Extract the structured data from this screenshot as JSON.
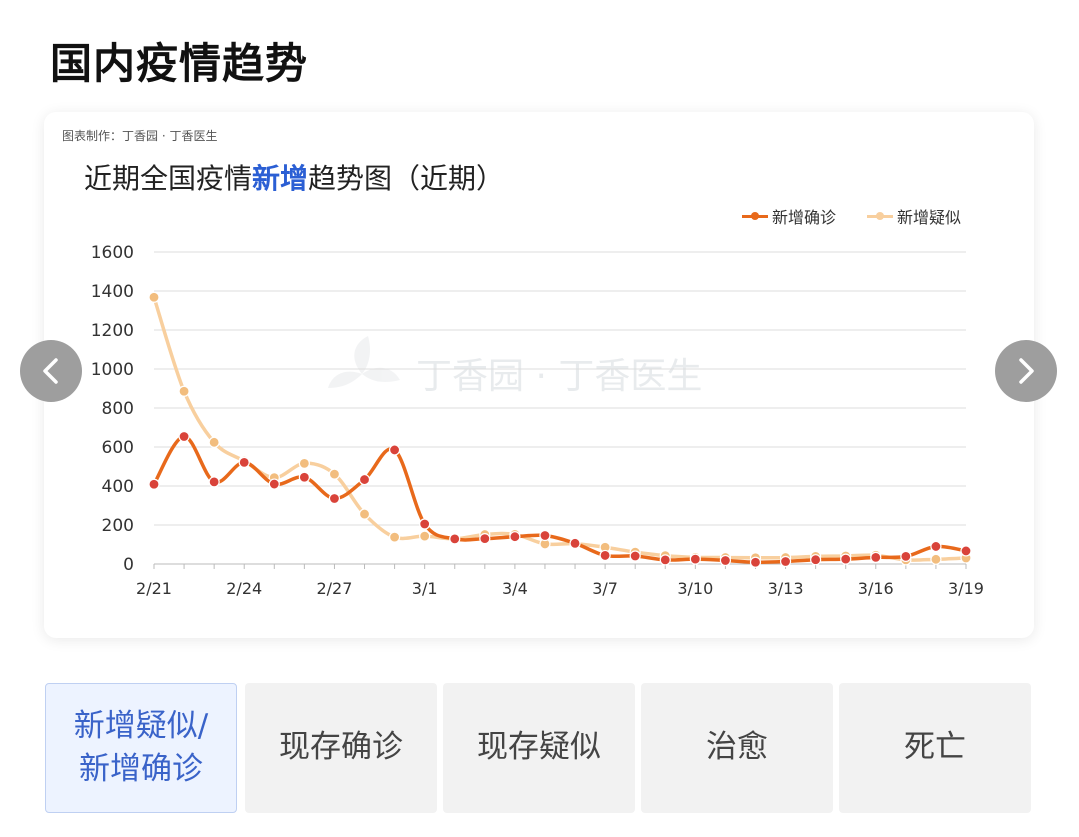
{
  "page": {
    "title": "国内疫情趋势"
  },
  "card": {
    "credit": "图表制作：丁香园 · 丁香医生",
    "title_prefix": "近期全国疫情",
    "title_highlight": "新增",
    "title_suffix": "趋势图（近期）",
    "watermark": "丁香园 · 丁香医生"
  },
  "colors": {
    "confirmed": "#e8691b",
    "confirmed_dot": "#d9433a",
    "suspected": "#f8cf9e",
    "suspected_dot": "#f2bd7e",
    "grid": "#dddddd",
    "highlight": "#2b5fd4",
    "nav_button": "#9e9e9e"
  },
  "chart_data": {
    "type": "line",
    "x": [
      "2/21",
      "2/22",
      "2/23",
      "2/24",
      "2/25",
      "2/26",
      "2/27",
      "2/28",
      "2/29",
      "3/1",
      "3/2",
      "3/3",
      "3/4",
      "3/5",
      "3/6",
      "3/7",
      "3/8",
      "3/9",
      "3/10",
      "3/11",
      "3/12",
      "3/13",
      "3/14",
      "3/15",
      "3/16",
      "3/17",
      "3/18",
      "3/19"
    ],
    "xtick_labels": [
      "2/21",
      "2/24",
      "2/27",
      "3/1",
      "3/4",
      "3/7",
      "3/10",
      "3/13",
      "3/16",
      "3/19"
    ],
    "ylim": [
      0,
      1600
    ],
    "yticks": [
      0,
      200,
      400,
      600,
      800,
      1000,
      1200,
      1400,
      1600
    ],
    "grid": true,
    "legend_position": "top-right",
    "series": [
      {
        "name": "新增确诊",
        "values": [
          409,
          654,
          421,
          521,
          410,
          445,
          336,
          433,
          585,
          205,
          129,
          130,
          140,
          146,
          106,
          44,
          41,
          21,
          25,
          18,
          9,
          13,
          22,
          25,
          34,
          39,
          90,
          67
        ]
      },
      {
        "name": "新增疑似",
        "values": [
          1368,
          886,
          624,
          528,
          443,
          516,
          461,
          256,
          138,
          143,
          129,
          151,
          152,
          103,
          104,
          86,
          61,
          43,
          34,
          33,
          32,
          33,
          39,
          41,
          45,
          21,
          24,
          31
        ]
      }
    ]
  },
  "tabs": [
    {
      "label_line1": "新增疑似/",
      "label_line2": "新增确诊"
    },
    {
      "label_line1": "现存确诊",
      "label_line2": ""
    },
    {
      "label_line1": "现存疑似",
      "label_line2": ""
    },
    {
      "label_line1": "治愈",
      "label_line2": ""
    },
    {
      "label_line1": "死亡",
      "label_line2": ""
    }
  ],
  "nav": {
    "prev_icon": "chevron-left-icon",
    "next_icon": "chevron-right-icon"
  }
}
